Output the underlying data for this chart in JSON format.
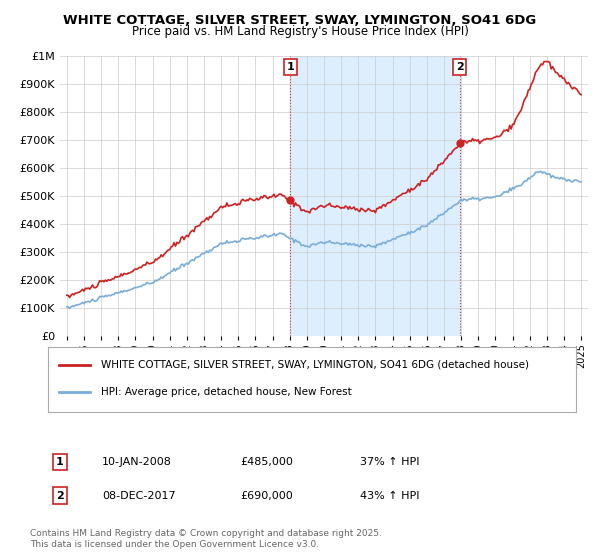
{
  "title": "WHITE COTTAGE, SILVER STREET, SWAY, LYMINGTON, SO41 6DG",
  "subtitle": "Price paid vs. HM Land Registry's House Price Index (HPI)",
  "background_color": "#ffffff",
  "grid_color": "#cccccc",
  "sale1_date": "10-JAN-2008",
  "sale1_price": 485000,
  "sale1_hpi": "37% ↑ HPI",
  "sale2_date": "08-DEC-2017",
  "sale2_price": 690000,
  "sale2_hpi": "43% ↑ HPI",
  "red_line_color": "#cc2222",
  "blue_line_color": "#7aaddc",
  "vline_color": "#cc2222",
  "shade_color": "#ddeeff",
  "legend_label_red": "WHITE COTTAGE, SILVER STREET, SWAY, LYMINGTON, SO41 6DG (detached house)",
  "legend_label_blue": "HPI: Average price, detached house, New Forest",
  "footer": "Contains HM Land Registry data © Crown copyright and database right 2025.\nThis data is licensed under the Open Government Licence v3.0.",
  "ylim": [
    0,
    1000000
  ],
  "yticks": [
    0,
    100000,
    200000,
    300000,
    400000,
    500000,
    600000,
    700000,
    800000,
    900000,
    1000000
  ],
  "sale1_year": 2008.04,
  "sale2_year": 2017.92
}
